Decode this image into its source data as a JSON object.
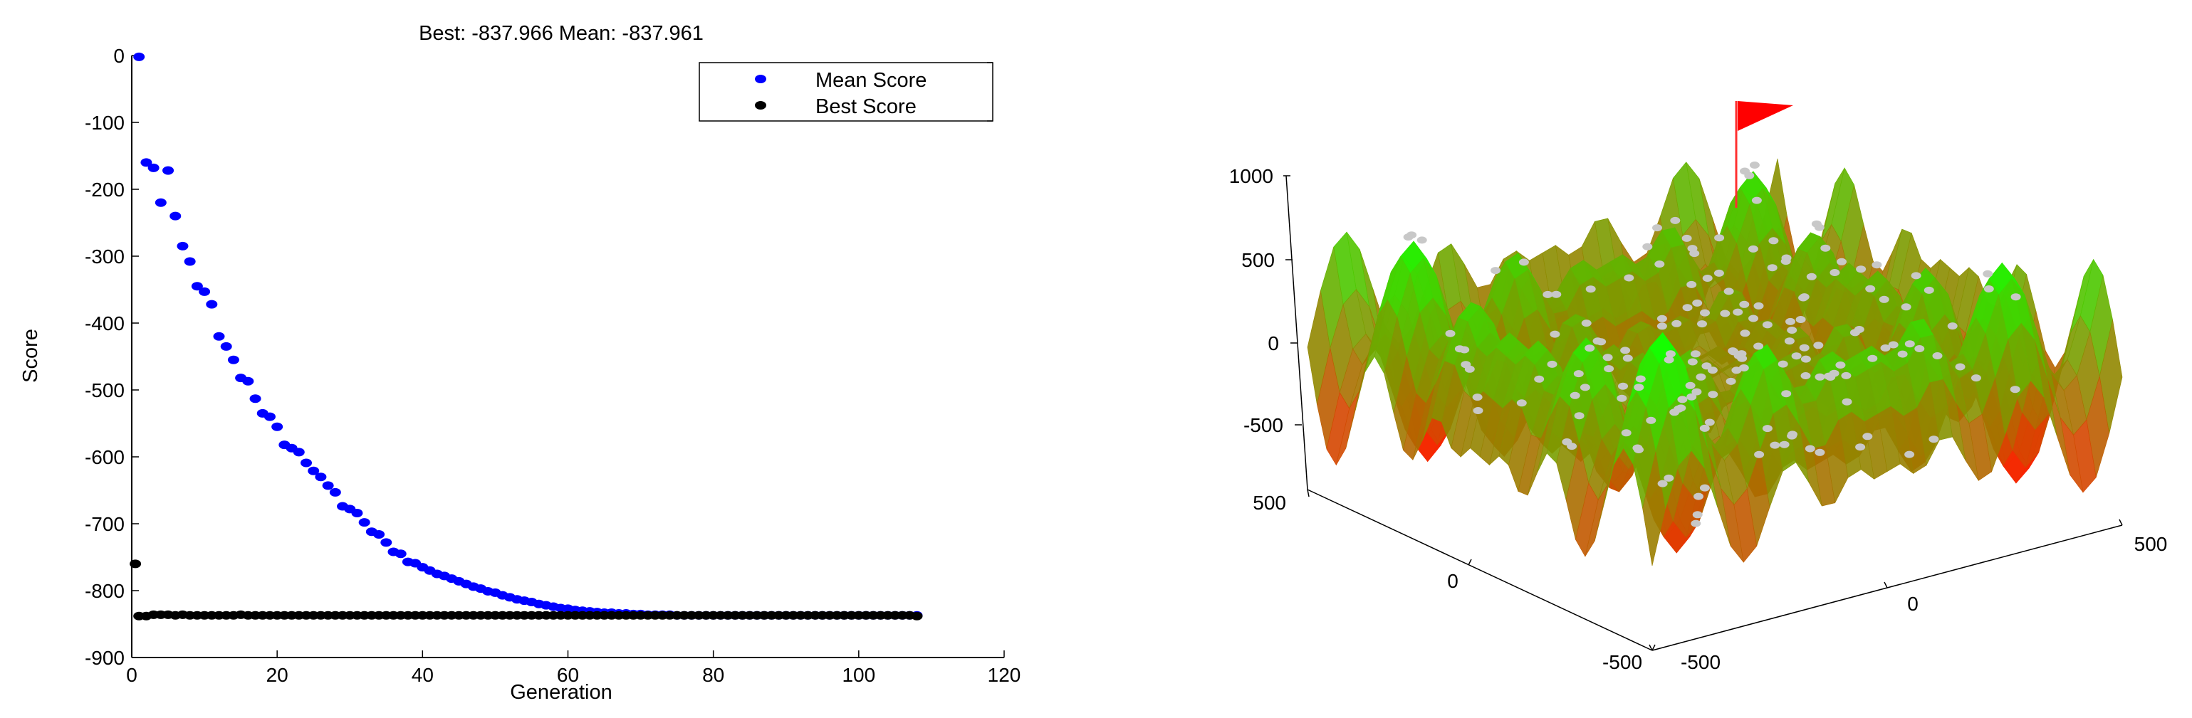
{
  "chart_data": [
    {
      "type": "scatter",
      "title": "Best: -837.966 Mean: -837.961",
      "xlabel": "Generation",
      "ylabel": "Score",
      "xlim": [
        0,
        120
      ],
      "ylim": [
        -900,
        0
      ],
      "x_ticks": [
        "0",
        "20",
        "40",
        "60",
        "80",
        "100",
        "120"
      ],
      "y_ticks": [
        "0",
        "-100",
        "-200",
        "-300",
        "-400",
        "-500",
        "-600",
        "-700",
        "-800",
        "-900"
      ],
      "legend": {
        "position": "top-right",
        "entries": [
          "Mean Score",
          "Best Score"
        ]
      },
      "colors": {
        "mean": "#0000ff",
        "best": "#000000"
      },
      "grid": false,
      "series": [
        {
          "name": "Mean Score",
          "x": [
            1,
            2,
            3,
            4,
            5,
            6,
            7,
            8,
            9,
            10,
            11,
            12,
            13,
            14,
            15,
            16,
            17,
            18,
            19,
            20,
            21,
            22,
            23,
            24,
            25,
            26,
            27,
            28,
            29,
            30,
            31,
            32,
            33,
            34,
            35,
            36,
            37,
            38,
            39,
            40,
            41,
            42,
            43,
            44,
            45,
            46,
            47,
            48,
            49,
            50,
            51,
            52,
            53,
            54,
            55,
            56,
            57,
            58,
            59,
            60,
            61,
            62,
            63,
            64,
            65,
            66,
            67,
            68,
            69,
            70,
            71,
            72,
            73,
            74,
            75,
            76,
            77,
            78,
            79,
            80,
            81,
            82,
            83,
            84,
            85,
            86,
            87,
            88,
            89,
            90,
            91,
            92,
            93,
            94,
            95,
            96,
            97,
            98,
            99,
            100,
            101,
            102,
            103,
            104,
            105,
            106,
            107,
            108
          ],
          "values": [
            -2,
            -160,
            -168,
            -220,
            -172,
            -240,
            -285,
            -308,
            -345,
            -353,
            -372,
            -420,
            -435,
            -455,
            -482,
            -487,
            -513,
            -535,
            -540,
            -555,
            -582,
            -587,
            -593,
            -609,
            -621,
            -630,
            -643,
            -653,
            -674,
            -678,
            -684,
            -698,
            -712,
            -716,
            -728,
            -742,
            -745,
            -757,
            -759,
            -765,
            -770,
            -775,
            -778,
            -782,
            -786,
            -790,
            -794,
            -797,
            -801,
            -803,
            -807,
            -810,
            -813,
            -815,
            -817,
            -820,
            -822,
            -824,
            -826,
            -827,
            -829,
            -830,
            -831,
            -832,
            -833,
            -833,
            -834,
            -834,
            -835,
            -835,
            -836,
            -836,
            -836,
            -836,
            -837,
            -837,
            -837,
            -837,
            -837,
            -837,
            -837,
            -837,
            -837,
            -837,
            -837,
            -837,
            -837,
            -837,
            -837,
            -837,
            -837,
            -837,
            -837,
            -837,
            -837,
            -837,
            -837,
            -837,
            -837,
            -837,
            -837,
            -837,
            -837,
            -837,
            -837,
            -837,
            -837,
            -837
          ]
        },
        {
          "name": "Best Score",
          "x": [
            1,
            2,
            3,
            4,
            5,
            6,
            7,
            8,
            9,
            10,
            11,
            12,
            13,
            14,
            15,
            16,
            17,
            18,
            19,
            20,
            21,
            22,
            23,
            24,
            25,
            26,
            27,
            28,
            29,
            30,
            31,
            32,
            33,
            34,
            35,
            36,
            37,
            38,
            39,
            40,
            41,
            42,
            43,
            44,
            45,
            46,
            47,
            48,
            49,
            50,
            51,
            52,
            53,
            54,
            55,
            56,
            57,
            58,
            59,
            60,
            61,
            62,
            63,
            64,
            65,
            66,
            67,
            68,
            69,
            70,
            71,
            72,
            73,
            74,
            75,
            76,
            77,
            78,
            79,
            80,
            81,
            82,
            83,
            84,
            85,
            86,
            87,
            88,
            89,
            90,
            91,
            92,
            93,
            94,
            95,
            96,
            97,
            98,
            99,
            100,
            101,
            102,
            103,
            104,
            105,
            106,
            107,
            108
          ],
          "values": [
            -838,
            -838,
            -836,
            -836,
            -836,
            -837,
            -836,
            -837,
            -837,
            -837,
            -837,
            -837,
            -837,
            -837,
            -836,
            -837,
            -837,
            -837,
            -837,
            -837,
            -837,
            -837,
            -837,
            -837,
            -837,
            -837,
            -837,
            -837,
            -837,
            -837,
            -837,
            -837,
            -837,
            -837,
            -837,
            -837,
            -837,
            -837,
            -837,
            -837,
            -837,
            -837,
            -837,
            -837,
            -837,
            -837,
            -837,
            -837,
            -837,
            -837,
            -837,
            -837,
            -837,
            -837,
            -837,
            -837,
            -837,
            -837,
            -837,
            -837,
            -837,
            -837,
            -837,
            -837,
            -837,
            -837,
            -837,
            -837,
            -837,
            -837,
            -837,
            -837,
            -837,
            -837,
            -837,
            -837,
            -837,
            -837,
            -837,
            -837,
            -837,
            -837,
            -837,
            -837,
            -837,
            -837,
            -837,
            -837,
            -837,
            -837,
            -837,
            -837,
            -837,
            -837,
            -837,
            -837,
            -837,
            -837,
            -837,
            -837,
            -837,
            -837,
            -837,
            -837,
            -837,
            -837,
            -837,
            -838
          ]
        }
      ],
      "outlier": {
        "x": 0.5,
        "y": -760
      }
    },
    {
      "type": "surface",
      "title": "",
      "xlim": [
        -500,
        500
      ],
      "ylim": [
        -500,
        500
      ],
      "zlim": [
        -500,
        1000
      ],
      "z_ticks": [
        "1000",
        "500",
        "0",
        "-500"
      ],
      "x_ticks": [
        "-500",
        "0",
        "500"
      ],
      "y_ticks": [
        "500",
        "0",
        "-500"
      ],
      "colors": {
        "low": "#ff1a00",
        "high": "#00ff22",
        "points": "#c8c8c8",
        "flag": "#ff0000"
      },
      "flag": {
        "x": 420,
        "y": 420,
        "z": 1000
      }
    }
  ]
}
